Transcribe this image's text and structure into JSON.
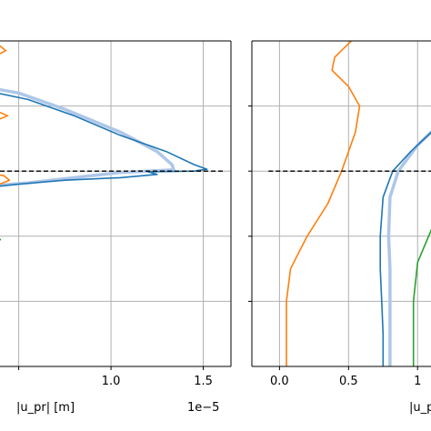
{
  "chart_data": [
    {
      "type": "line",
      "panel": "left",
      "xlabel": "|u_pr| [m]",
      "x_multiplier_label": "1e−5",
      "x_unit_scale": 1e-05,
      "xlim": [
        0.3,
        1.65
      ],
      "ylim": [
        0,
        5
      ],
      "xticks": [
        0.5,
        1.0,
        1.5
      ],
      "xtick_labels": [
        "",
        "1.0",
        "1.5"
      ],
      "yticks": [
        1,
        2,
        3,
        4
      ],
      "grid": true,
      "reference_line": {
        "style": "dashed",
        "y": 3
      },
      "series": [
        {
          "color": "#aec7e8",
          "values": [
            [
              0.3,
              4.3
            ],
            [
              0.5,
              4.2
            ],
            [
              0.75,
              3.95
            ],
            [
              1.05,
              3.6
            ],
            [
              1.25,
              3.3
            ],
            [
              1.33,
              3.1
            ],
            [
              1.34,
              3.02
            ],
            [
              1.2,
              3.0
            ],
            [
              1.05,
              2.98
            ],
            [
              0.8,
              2.9
            ],
            [
              0.55,
              2.82
            ],
            [
              0.38,
              2.78
            ],
            [
              0.3,
              2.75
            ]
          ]
        },
        {
          "color": "#1f77b4",
          "values": [
            [
              0.3,
              4.25
            ],
            [
              0.55,
              4.1
            ],
            [
              0.8,
              3.85
            ],
            [
              1.05,
              3.55
            ],
            [
              1.3,
              3.3
            ],
            [
              1.45,
              3.1
            ],
            [
              1.52,
              3.03
            ],
            [
              1.45,
              3.0
            ],
            [
              1.2,
              2.99
            ],
            [
              1.25,
              2.95
            ],
            [
              1.05,
              2.9
            ],
            [
              0.75,
              2.86
            ],
            [
              0.5,
              2.8
            ],
            [
              0.3,
              2.74
            ]
          ]
        },
        {
          "color": "#ff7f0e",
          "values": [
            [
              0.3,
              4.95
            ],
            [
              0.4,
              4.92
            ],
            [
              0.43,
              4.85
            ],
            [
              0.38,
              4.78
            ],
            [
              0.3,
              4.8
            ]
          ]
        },
        {
          "color": "#ff7f0e",
          "values": [
            [
              0.3,
              3.93
            ],
            [
              0.4,
              3.9
            ],
            [
              0.44,
              3.85
            ],
            [
              0.38,
              3.78
            ],
            [
              0.3,
              3.8
            ]
          ]
        },
        {
          "color": "#ff7f0e",
          "values": [
            [
              0.3,
              2.98
            ],
            [
              0.42,
              2.93
            ],
            [
              0.45,
              2.86
            ],
            [
              0.38,
              2.78
            ],
            [
              0.3,
              2.75
            ]
          ]
        },
        {
          "color": "#2ca02c",
          "values": [
            [
              0.3,
              4.5
            ],
            [
              0.33,
              4.4
            ],
            [
              0.32,
              4.25
            ],
            [
              0.3,
              4.2
            ]
          ]
        },
        {
          "color": "#2ca02c",
          "values": [
            [
              0.3,
              2.05
            ],
            [
              0.36,
              2.02
            ],
            [
              0.4,
              1.95
            ],
            [
              0.37,
              1.85
            ],
            [
              0.3,
              1.82
            ]
          ]
        }
      ]
    },
    {
      "type": "line",
      "panel": "right",
      "xlabel": "|u_pz",
      "xlim": [
        -0.2,
        1.4
      ],
      "ylim": [
        0,
        5
      ],
      "xticks": [
        0.0,
        0.5,
        1.0
      ],
      "xtick_labels": [
        "0.0",
        "0.5",
        "1"
      ],
      "yticks": [
        1,
        2,
        3,
        4
      ],
      "grid": true,
      "reference_line": {
        "style": "dashed",
        "y": 3
      },
      "series": [
        {
          "color": "#ff7f0e",
          "values": [
            [
              0.52,
              5.0
            ],
            [
              0.4,
              4.75
            ],
            [
              0.38,
              4.55
            ],
            [
              0.5,
              4.3
            ],
            [
              0.58,
              4.0
            ],
            [
              0.55,
              3.6
            ],
            [
              0.45,
              3.0
            ],
            [
              0.35,
              2.5
            ],
            [
              0.2,
              2.0
            ],
            [
              0.08,
              1.5
            ],
            [
              0.05,
              1.0
            ],
            [
              0.05,
              0.0
            ]
          ]
        },
        {
          "color": "#aec7e8",
          "values": [
            [
              1.4,
              4.2
            ],
            [
              1.2,
              3.8
            ],
            [
              1.0,
              3.4
            ],
            [
              0.86,
              3.0
            ],
            [
              0.8,
              2.6
            ],
            [
              0.79,
              2.0
            ],
            [
              0.8,
              1.5
            ],
            [
              0.8,
              1.0
            ],
            [
              0.8,
              0.5
            ],
            [
              0.8,
              0.0
            ]
          ]
        },
        {
          "color": "#1f77b4",
          "values": [
            [
              1.4,
              4.1
            ],
            [
              1.15,
              3.7
            ],
            [
              0.95,
              3.3
            ],
            [
              0.82,
              3.0
            ],
            [
              0.75,
              2.6
            ],
            [
              0.73,
              2.0
            ],
            [
              0.73,
              1.5
            ],
            [
              0.74,
              1.0
            ],
            [
              0.75,
              0.5
            ],
            [
              0.75,
              0.0
            ]
          ]
        },
        {
          "color": "#2ca02c",
          "values": [
            [
              1.4,
              3.0
            ],
            [
              1.25,
              2.6
            ],
            [
              1.1,
              2.1
            ],
            [
              1.0,
              1.6
            ],
            [
              0.97,
              1.0
            ],
            [
              0.97,
              0.0
            ]
          ]
        }
      ]
    }
  ],
  "colors": {
    "grid": "#b0b0b0",
    "axes": "#000000",
    "dash": "#000000"
  }
}
